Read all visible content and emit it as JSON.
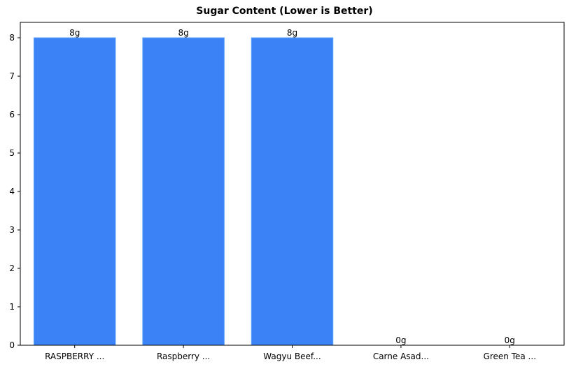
{
  "chart_data": {
    "type": "bar",
    "title": "Sugar Content (Lower is Better)",
    "xlabel": "",
    "ylabel": "",
    "categories": [
      "RASPBERRY ...",
      "Raspberry ...",
      "Wagyu Beef...",
      "Carne Asad...",
      "Green Tea ..."
    ],
    "values": [
      8,
      8,
      8,
      0,
      0
    ],
    "value_labels": [
      "8g",
      "8g",
      "8g",
      "0g",
      "0g"
    ],
    "ylim": [
      0,
      8.4
    ],
    "yticks": [
      0,
      1,
      2,
      3,
      4,
      5,
      6,
      7,
      8
    ],
    "grid": false,
    "legend": null,
    "bar_color": "#3b82f6",
    "bar_edge_color": "#60a5fa"
  }
}
